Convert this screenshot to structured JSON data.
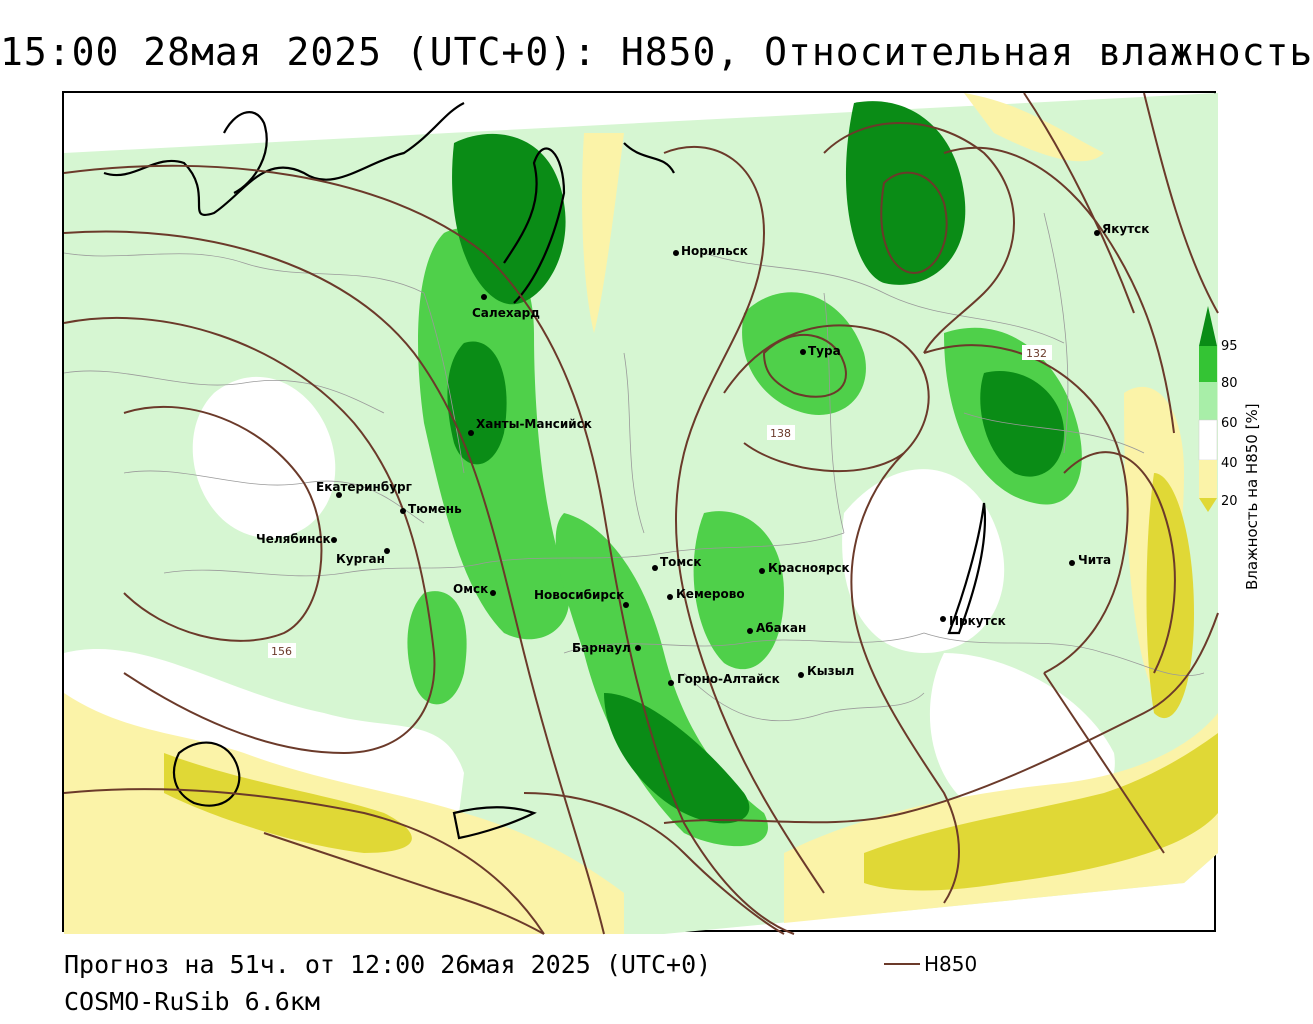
{
  "title": "15:00 28мая 2025 (UTC+0): H850, Относительная влажность",
  "footer": {
    "forecast": "Прогноз на 51ч. от 12:00 26мая 2025 (UTC+0)",
    "model": "COSMO-RuSib 6.6км"
  },
  "legend": {
    "line_label": "H850",
    "line_color": "#6b3a2a"
  },
  "colorbar": {
    "title": "Влажность на H850 [%]",
    "ticks": [
      "95",
      "80",
      "60",
      "40",
      "20"
    ],
    "colors": {
      "c95": "#0a8c16",
      "c80": "#34c434",
      "c60": "#a8eea8",
      "c40": "#ffffff",
      "c20": "#fbf3a8",
      "cdry": "#e0d836"
    }
  },
  "cities": [
    {
      "name": "Якутск"
    },
    {
      "name": "Норильск"
    },
    {
      "name": "Салехард"
    },
    {
      "name": "Тура"
    },
    {
      "name": "Ханты-Мансийск"
    },
    {
      "name": "Екатеринбург"
    },
    {
      "name": "Тюмень"
    },
    {
      "name": "Челябинск"
    },
    {
      "name": "Курган"
    },
    {
      "name": "Омск"
    },
    {
      "name": "Томск"
    },
    {
      "name": "Красноярск"
    },
    {
      "name": "Новосибирск"
    },
    {
      "name": "Кемерово"
    },
    {
      "name": "Абакан"
    },
    {
      "name": "Барнаул"
    },
    {
      "name": "Горно-Алтайск"
    },
    {
      "name": "Кызыл"
    },
    {
      "name": "Иркутск"
    },
    {
      "name": "Чита"
    }
  ],
  "contour_labels": [
    "132",
    "138",
    "156"
  ]
}
